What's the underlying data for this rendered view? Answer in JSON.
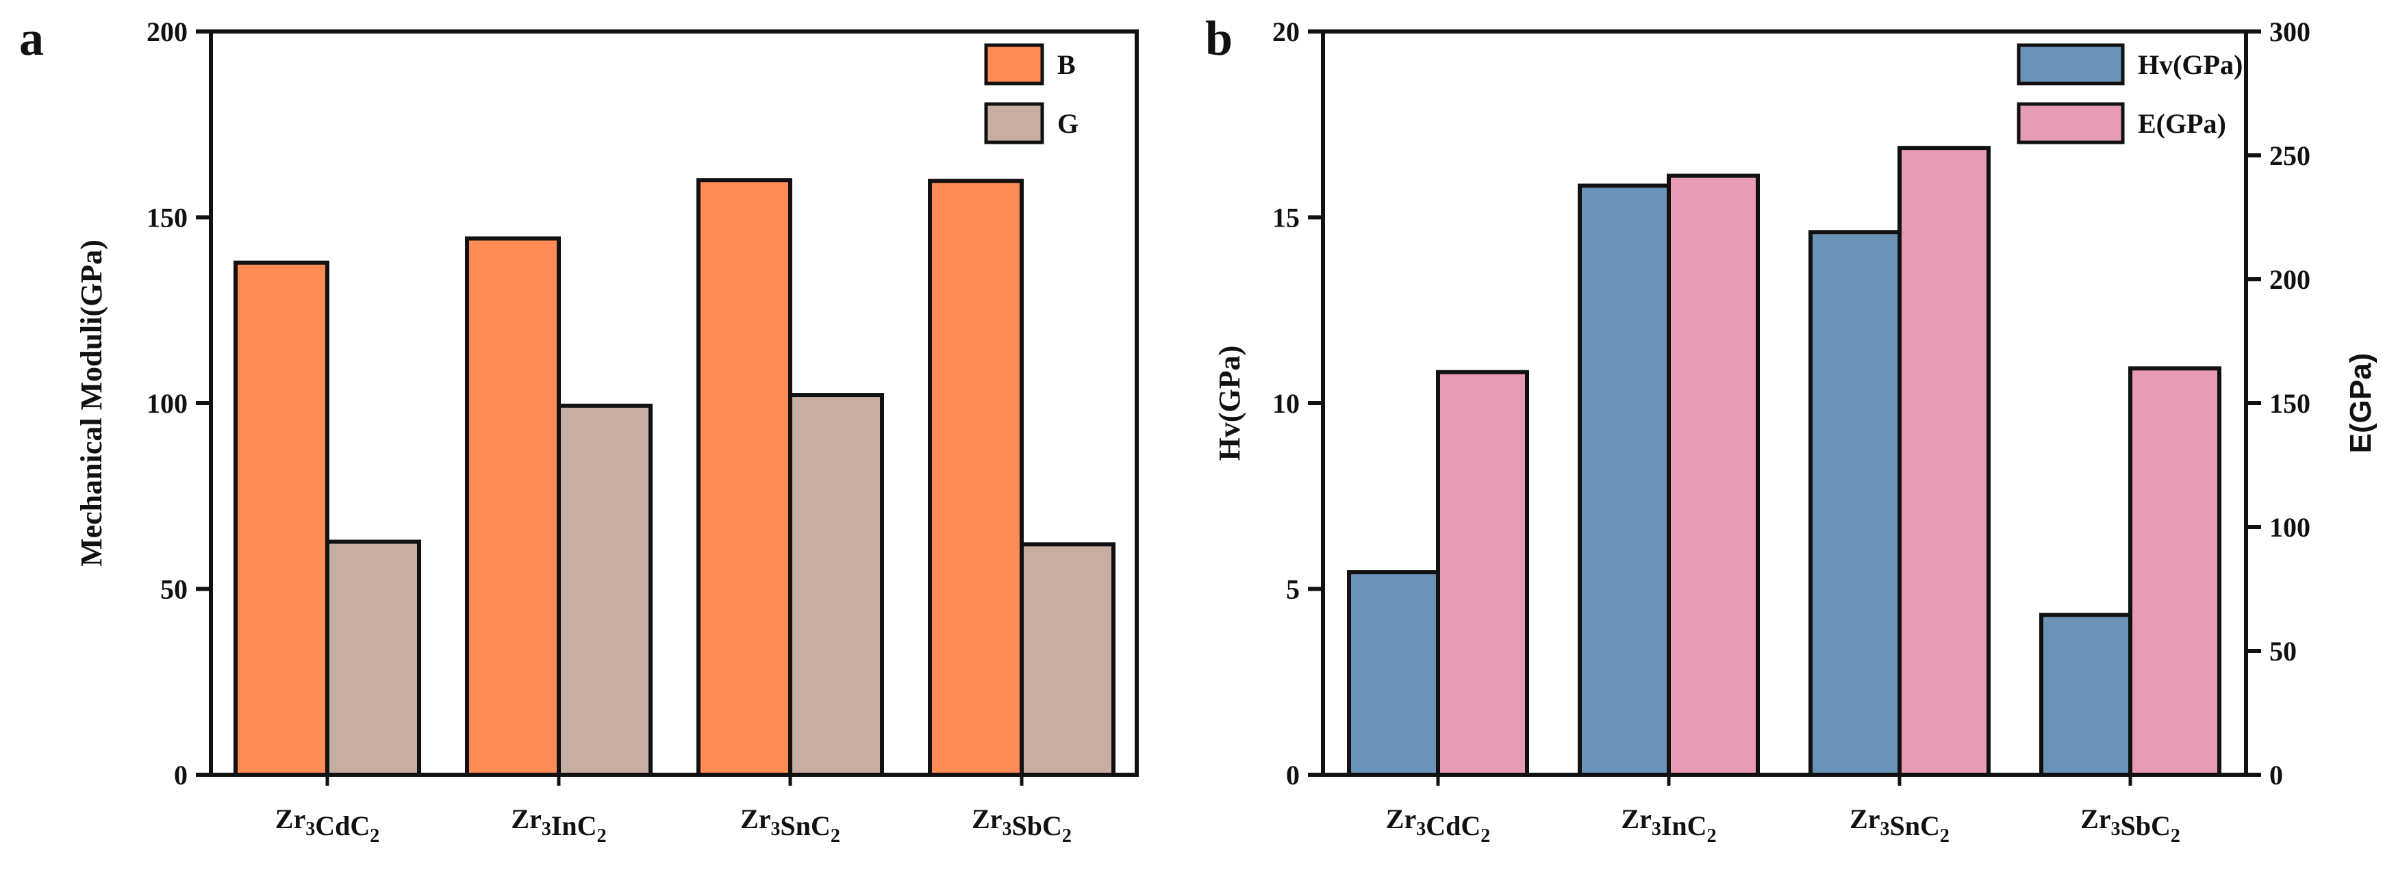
{
  "chart_data": [
    {
      "panel": "a",
      "type": "bar",
      "ylabel": "Mechanical Moduli(GPa)",
      "ylim": [
        0,
        200
      ],
      "yticks": [
        0,
        50,
        100,
        150,
        200
      ],
      "categories": [
        {
          "base": "Zr",
          "parts": [
            {
              "t": "Zr"
            },
            {
              "t": "3",
              "sub": true
            },
            {
              "t": "CdC"
            },
            {
              "t": "2",
              "sub": true
            }
          ]
        },
        {
          "base": "Zr",
          "parts": [
            {
              "t": "Zr"
            },
            {
              "t": "3",
              "sub": true
            },
            {
              "t": "InC"
            },
            {
              "t": "2",
              "sub": true
            }
          ]
        },
        {
          "base": "Zr",
          "parts": [
            {
              "t": "Zr"
            },
            {
              "t": "3",
              "sub": true
            },
            {
              "t": "SnC"
            },
            {
              "t": "2",
              "sub": true
            }
          ]
        },
        {
          "base": "Zr",
          "parts": [
            {
              "t": "Zr"
            },
            {
              "t": "3",
              "sub": true
            },
            {
              "t": "SbC"
            },
            {
              "t": "2",
              "sub": true
            }
          ]
        }
      ],
      "series": [
        {
          "name": "B",
          "color": "#FF8C57",
          "values": [
            137.8,
            144.3,
            160.0,
            159.8
          ]
        },
        {
          "name": "G",
          "color": "#C7AEA2",
          "values": [
            62.7,
            99.3,
            102.2,
            62.0
          ]
        }
      ],
      "legend": "top-right"
    },
    {
      "panel": "b",
      "type": "bar",
      "ylabel": "Hv(GPa)",
      "y2label": "E(GPa)",
      "ylim": [
        0,
        20
      ],
      "yticks": [
        0,
        5,
        10,
        15,
        20
      ],
      "y2lim": [
        0,
        300
      ],
      "y2ticks": [
        0,
        50,
        100,
        150,
        200,
        250,
        300
      ],
      "categories": [
        {
          "parts": [
            {
              "t": "Zr"
            },
            {
              "t": "3",
              "sub": true
            },
            {
              "t": "CdC"
            },
            {
              "t": "2",
              "sub": true
            }
          ]
        },
        {
          "parts": [
            {
              "t": "Zr"
            },
            {
              "t": "3",
              "sub": true
            },
            {
              "t": "InC"
            },
            {
              "t": "2",
              "sub": true
            }
          ]
        },
        {
          "parts": [
            {
              "t": "Zr"
            },
            {
              "t": "3",
              "sub": true
            },
            {
              "t": "SnC"
            },
            {
              "t": "2",
              "sub": true
            }
          ]
        },
        {
          "parts": [
            {
              "t": "Zr"
            },
            {
              "t": "3",
              "sub": true
            },
            {
              "t": "SbC"
            },
            {
              "t": "2",
              "sub": true
            }
          ]
        }
      ],
      "series": [
        {
          "name": "Hv(GPa)",
          "axis": "left",
          "color": "#6B93B8",
          "values": [
            5.45,
            15.85,
            14.6,
            4.3
          ]
        },
        {
          "name": "E(GPa)",
          "axis": "right",
          "color": "#E89BB5",
          "values": [
            162.5,
            241.8,
            253.0,
            164.0
          ]
        }
      ],
      "legend": "top-right"
    }
  ]
}
